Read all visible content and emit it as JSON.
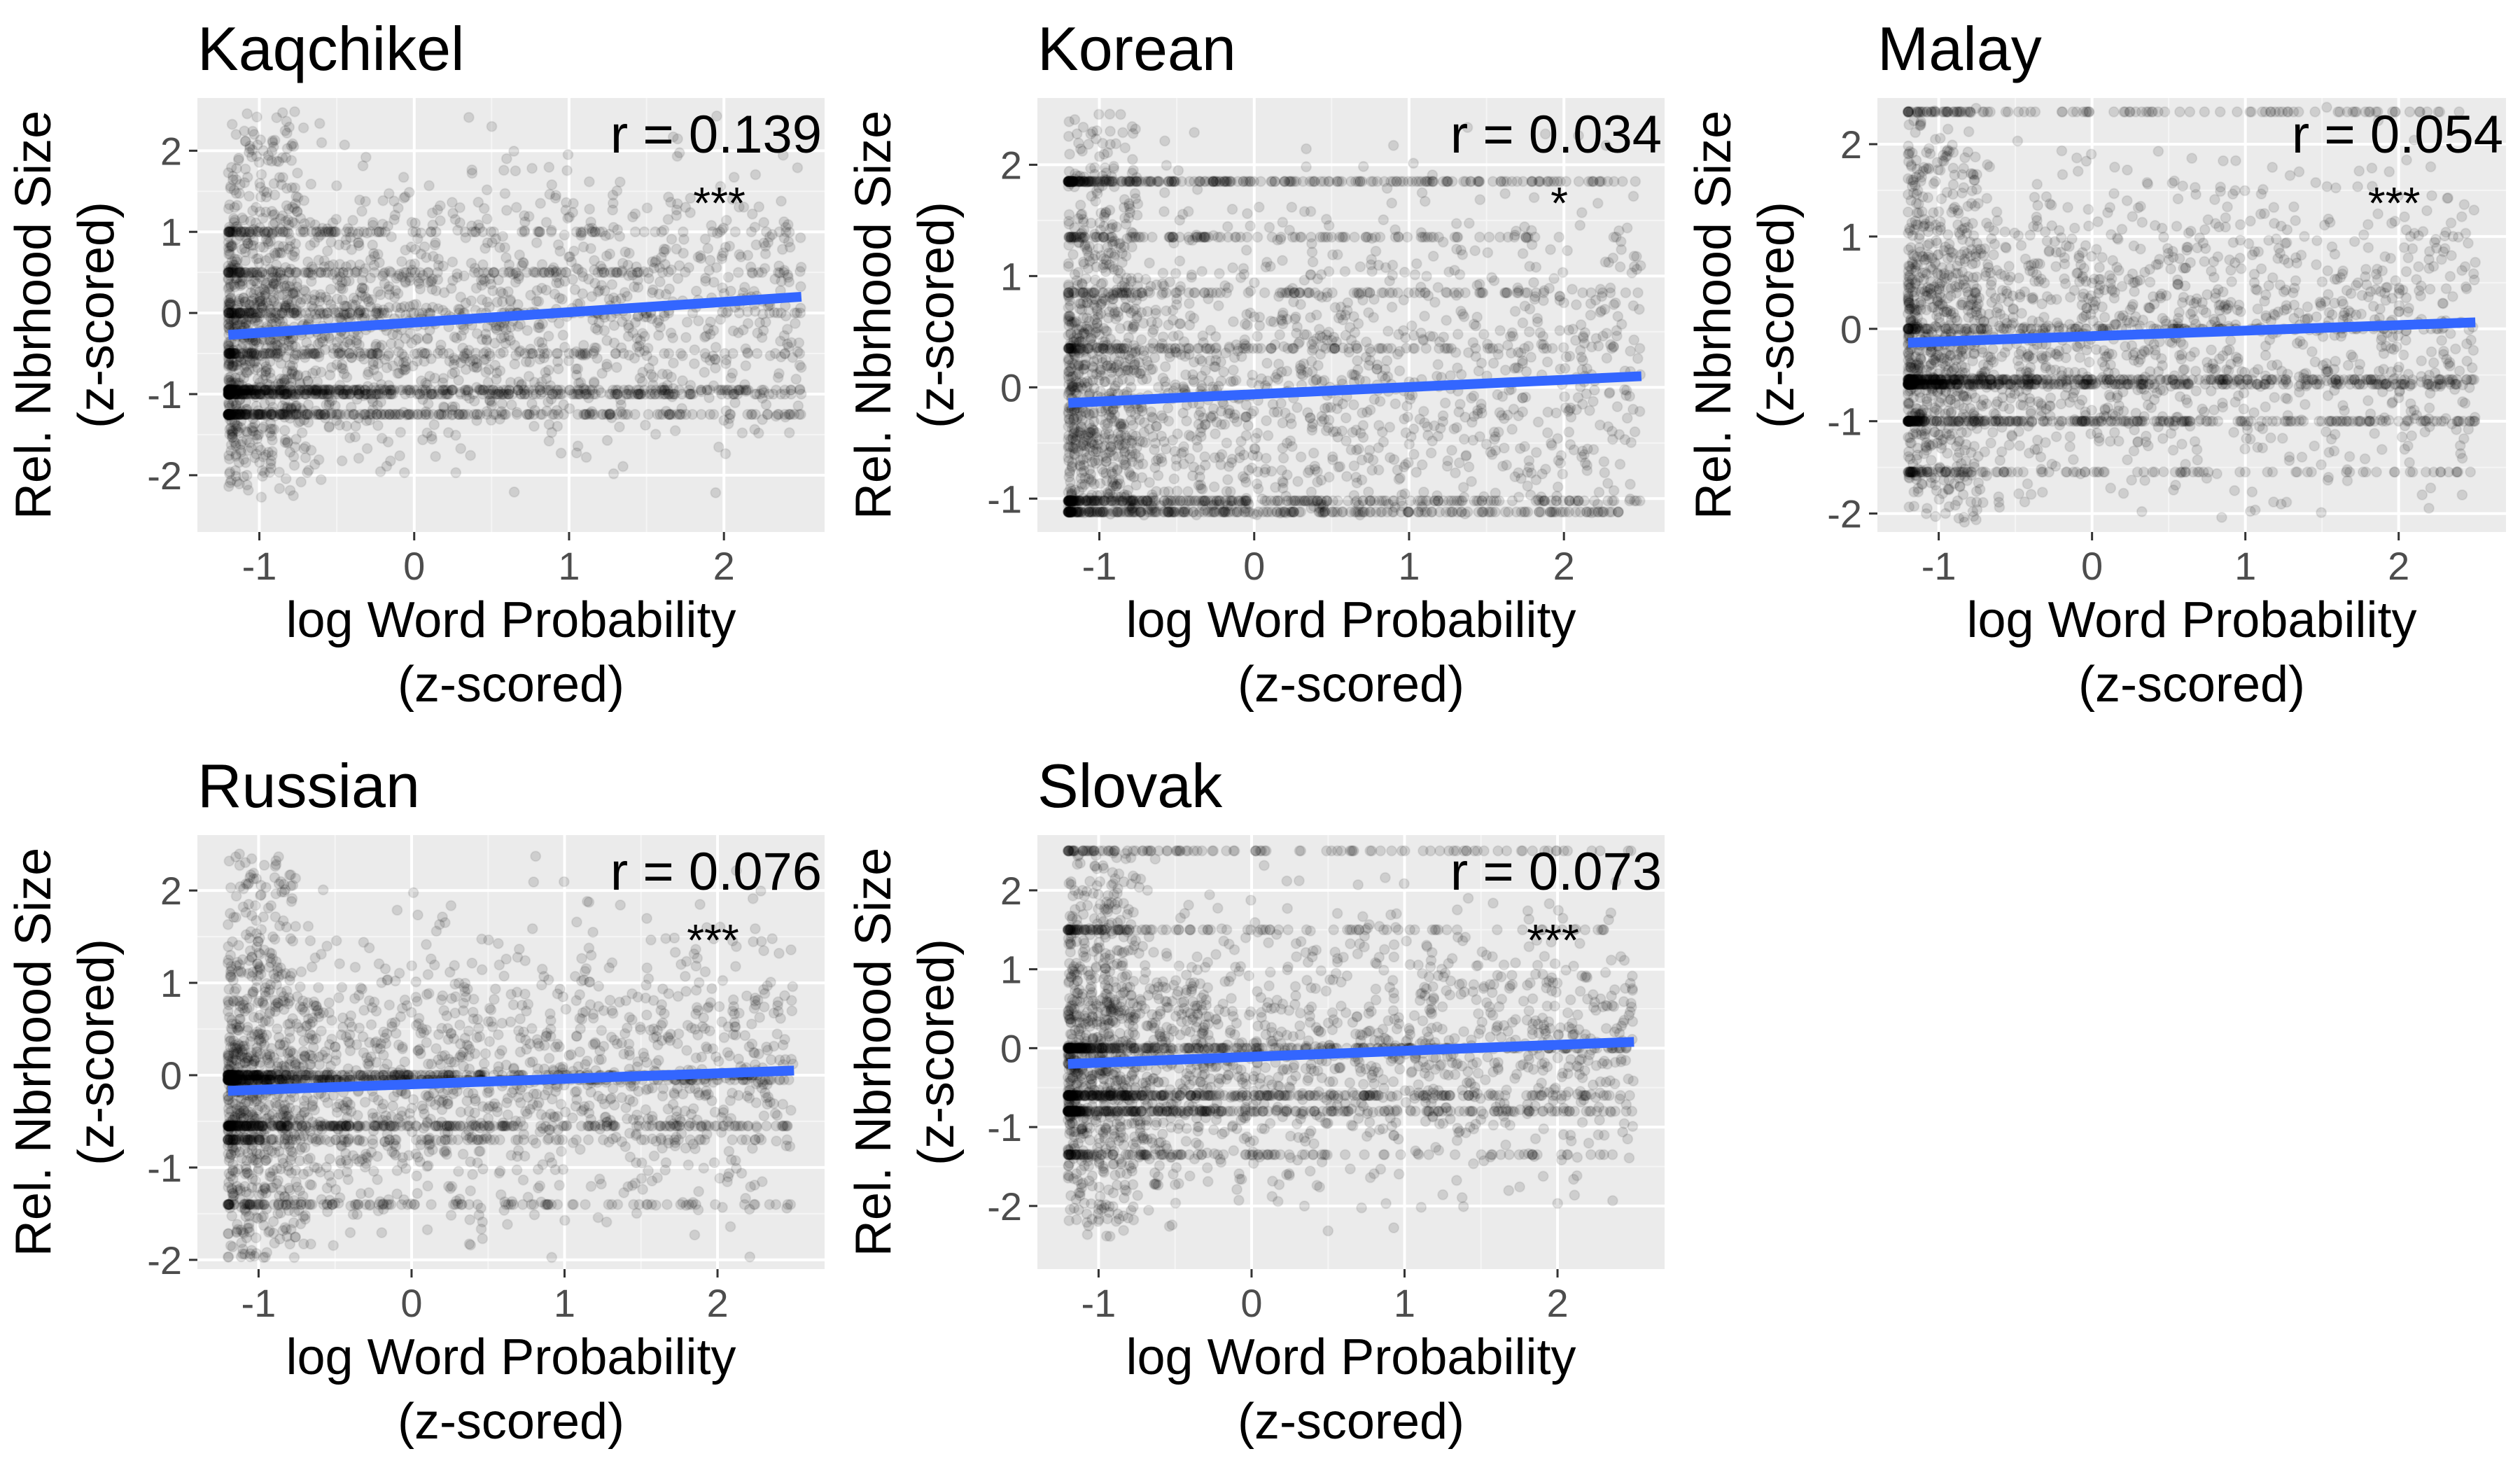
{
  "chart_data": [
    {
      "type": "scatter",
      "title": "Kaqchikel",
      "xlabel": [
        "log Word Probability",
        "(z-scored)"
      ],
      "ylabel": [
        "Rel. Nbrhood Size",
        "(z-scored)"
      ],
      "xlim": [
        -1.4,
        2.65
      ],
      "ylim": [
        -2.7,
        2.65
      ],
      "x_ticks": [
        -1,
        0,
        1,
        2
      ],
      "y_ticks": [
        -2,
        -1,
        0,
        1,
        2
      ],
      "x_tick_labels": [
        "-1",
        "0",
        "1",
        "2"
      ],
      "y_tick_labels": [
        "-2",
        "-1",
        "0",
        "1",
        "2"
      ],
      "grid": true,
      "points": {
        "color": "#000000",
        "alpha": 0.12,
        "x_range": [
          -1.2,
          2.5
        ],
        "y_range": [
          -2.3,
          2.5
        ],
        "dense_rows": [
          -1.25,
          -1.0,
          -0.95,
          -0.5,
          0.0,
          0.5,
          1.0
        ]
      },
      "fit_line": {
        "color": "#3366FF",
        "x": [
          -1.2,
          2.5
        ],
        "y": [
          -0.27,
          0.2
        ]
      },
      "annotation": {
        "r": "r = 0.139",
        "significance": "***"
      }
    },
    {
      "type": "scatter",
      "title": "Korean",
      "xlabel": [
        "log Word Probability",
        "(z-scored)"
      ],
      "ylabel": [
        "Rel. Nbrhood Size",
        "(z-scored)"
      ],
      "xlim": [
        -1.4,
        2.65
      ],
      "ylim": [
        -1.3,
        2.6
      ],
      "x_ticks": [
        -1,
        0,
        1,
        2
      ],
      "y_ticks": [
        -1,
        0,
        1,
        2
      ],
      "x_tick_labels": [
        "-1",
        "0",
        "1",
        "2"
      ],
      "y_tick_labels": [
        "-1",
        "0",
        "1",
        "2"
      ],
      "grid": true,
      "points": {
        "color": "#000000",
        "alpha": 0.12,
        "x_range": [
          -1.2,
          2.5
        ],
        "y_range": [
          -1.15,
          2.5
        ],
        "dense_rows": [
          -1.12,
          -1.02,
          1.85,
          1.35,
          0.85,
          0.35
        ]
      },
      "fit_line": {
        "color": "#3366FF",
        "x": [
          -1.2,
          2.5
        ],
        "y": [
          -0.14,
          0.1
        ]
      },
      "annotation": {
        "r": "r = 0.034",
        "significance": "*"
      }
    },
    {
      "type": "scatter",
      "title": "Malay",
      "xlabel": [
        "log Word Probability",
        "(z-scored)"
      ],
      "ylabel": [
        "Rel. Nbrhood Size",
        "(z-scored)"
      ],
      "xlim": [
        -1.4,
        2.7
      ],
      "ylim": [
        -2.2,
        2.5
      ],
      "x_ticks": [
        -1,
        0,
        1,
        2
      ],
      "y_ticks": [
        -2,
        -1,
        0,
        1,
        2
      ],
      "x_tick_labels": [
        "-1",
        "0",
        "1",
        "2"
      ],
      "y_tick_labels": [
        "-2",
        "-1",
        "0",
        "1",
        "2"
      ],
      "grid": true,
      "points": {
        "color": "#000000",
        "alpha": 0.12,
        "x_range": [
          -1.2,
          2.5
        ],
        "y_range": [
          -2.1,
          2.4
        ],
        "dense_rows": [
          -0.6,
          -0.55,
          -1.0,
          -1.55,
          0.0,
          2.35
        ]
      },
      "fit_line": {
        "color": "#3366FF",
        "x": [
          -1.2,
          2.5
        ],
        "y": [
          -0.15,
          0.07
        ]
      },
      "annotation": {
        "r": "r = 0.054",
        "significance": "***"
      }
    },
    {
      "type": "scatter",
      "title": "Russian",
      "xlabel": [
        "log Word Probability",
        "(z-scored)"
      ],
      "ylabel": [
        "Rel. Nbrhood Size",
        "(z-scored)"
      ],
      "xlim": [
        -1.4,
        2.7
      ],
      "ylim": [
        -2.1,
        2.6
      ],
      "x_ticks": [
        -1,
        0,
        1,
        2
      ],
      "y_ticks": [
        -2,
        -1,
        0,
        1,
        2
      ],
      "x_tick_labels": [
        "-1",
        "0",
        "1",
        "2"
      ],
      "y_tick_labels": [
        "-2",
        "-1",
        "0",
        "1",
        "2"
      ],
      "grid": true,
      "points": {
        "color": "#000000",
        "alpha": 0.12,
        "x_range": [
          -1.2,
          2.5
        ],
        "y_range": [
          -2.0,
          2.4
        ],
        "dense_rows": [
          0.0,
          -0.05,
          -0.55,
          -0.7,
          -1.4
        ]
      },
      "fit_line": {
        "color": "#3366FF",
        "x": [
          -1.2,
          2.5
        ],
        "y": [
          -0.17,
          0.05
        ]
      },
      "annotation": {
        "r": "r = 0.076",
        "significance": "***"
      }
    },
    {
      "type": "scatter",
      "title": "Slovak",
      "xlabel": [
        "log Word Probability",
        "(z-scored)"
      ],
      "ylabel": [
        "Rel. Nbrhood Size",
        "(z-scored)"
      ],
      "xlim": [
        -1.4,
        2.7
      ],
      "ylim": [
        -2.8,
        2.7
      ],
      "x_ticks": [
        -1,
        0,
        1,
        2
      ],
      "y_ticks": [
        -2,
        -1,
        0,
        1,
        2
      ],
      "x_tick_labels": [
        "-1",
        "0",
        "1",
        "2"
      ],
      "y_tick_labels": [
        "-2",
        "-1",
        "0",
        "1",
        "2"
      ],
      "grid": true,
      "points": {
        "color": "#000000",
        "alpha": 0.12,
        "x_range": [
          -1.2,
          2.5
        ],
        "y_range": [
          -2.4,
          2.5
        ],
        "dense_rows": [
          0.0,
          -0.6,
          -0.8,
          -1.35,
          1.5,
          2.5
        ]
      },
      "fit_line": {
        "color": "#3366FF",
        "x": [
          -1.2,
          2.5
        ],
        "y": [
          -0.2,
          0.08
        ]
      },
      "annotation": {
        "r": "r = 0.073",
        "significance": "***"
      }
    }
  ]
}
